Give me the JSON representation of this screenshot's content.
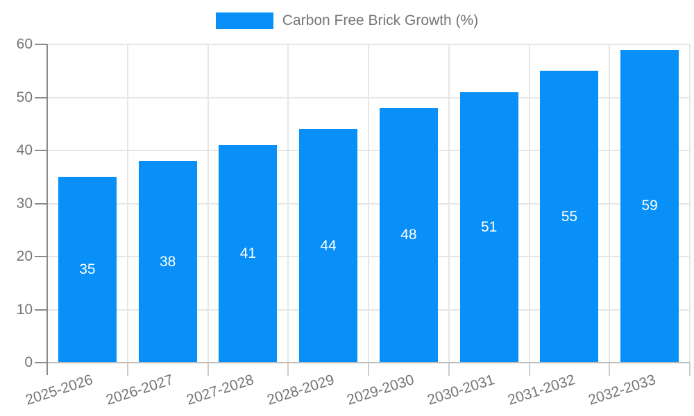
{
  "legend": {
    "label": "Carbon Free Brick Growth (%)"
  },
  "colors": {
    "bar": "#0890f8",
    "value_label": "#ffffff",
    "muted_text": "#757575",
    "grid": "#e6e6e6",
    "y_axis": "#8a8a8a",
    "x_axis": "#bcbcbc",
    "x_tick": "#cccccc",
    "background": "#ffffff"
  },
  "chart_data": {
    "type": "bar",
    "title": "Carbon Free Brick Growth (%)",
    "categories": [
      "2025-2026",
      "2026-2027",
      "2027-2028",
      "2028-2029",
      "2029-2030",
      "2030-2031",
      "2031-2032",
      "2032-2033"
    ],
    "values": [
      35,
      38,
      41,
      44,
      48,
      51,
      55,
      59
    ],
    "value_labels": [
      "35",
      "38",
      "41",
      "44",
      "48",
      "51",
      "55",
      "59"
    ],
    "xlabel": "",
    "ylabel": "",
    "ylim": [
      0,
      60
    ],
    "yticks": [
      0,
      10,
      20,
      30,
      40,
      50,
      60
    ],
    "ytick_labels": [
      "0",
      "10",
      "20",
      "30",
      "40",
      "50",
      "60"
    ],
    "grid": "on",
    "legend_position": "top-center",
    "value_label_position": "center-of-bar"
  }
}
